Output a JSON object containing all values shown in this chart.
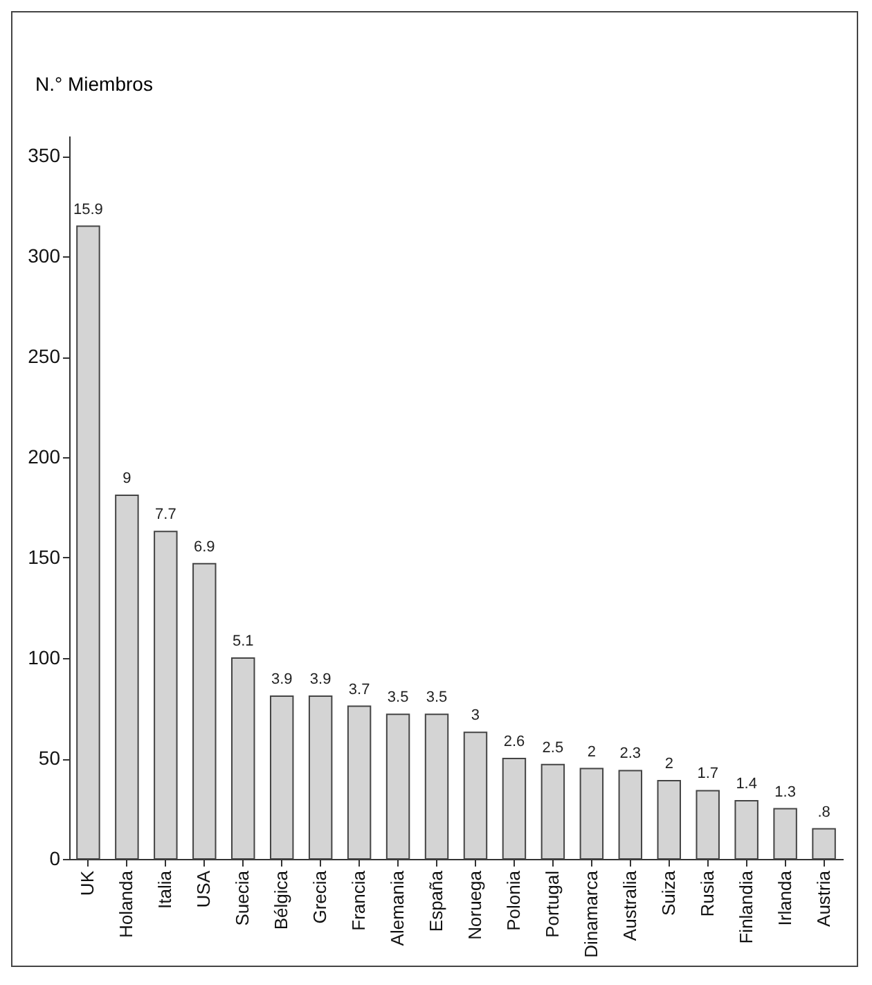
{
  "chart_data": {
    "type": "bar",
    "ylabel": "N.° Miembros",
    "categories": [
      "UK",
      "Holanda",
      "Italia",
      "USA",
      "Suecia",
      "Bélgica",
      "Grecia",
      "Francia",
      "Alemania",
      "España",
      "Noruega",
      "Polonia",
      "Portugal",
      "Dinamarca",
      "Australia",
      "Suiza",
      "Rusia",
      "Finlandia",
      "Irlanda",
      "Austria"
    ],
    "values": [
      315,
      181,
      163,
      147,
      100,
      81,
      81,
      76,
      72,
      72,
      63,
      50,
      47,
      45,
      44,
      39,
      34,
      29,
      25,
      15
    ],
    "annotations": [
      {
        "text": "15.9",
        "x": "UK",
        "y": 315
      },
      {
        "text": "9",
        "x": "Holanda",
        "y": 181
      },
      {
        "text": "7.7",
        "x": "Italia",
        "y": 163
      },
      {
        "text": "6.9",
        "x": "USA",
        "y": 147
      },
      {
        "text": "5.1",
        "x": "Suecia",
        "y": 100
      },
      {
        "text": "3.9",
        "x": "Bélgica",
        "y": 81
      },
      {
        "text": "3.9",
        "x": "Grecia",
        "y": 81
      },
      {
        "text": "3.7",
        "x": "Francia",
        "y": 76
      },
      {
        "text": "3.5",
        "x": "Alemania",
        "y": 72
      },
      {
        "text": "3.5",
        "x": "España",
        "y": 72
      },
      {
        "text": "3",
        "x": "Noruega",
        "y": 63
      },
      {
        "text": "2.6",
        "x": "Polonia",
        "y": 50
      },
      {
        "text": "2.5",
        "x": "Portugal",
        "y": 47
      },
      {
        "text": "2",
        "x": "Dinamarca",
        "y": 45
      },
      {
        "text": "2.3",
        "x": "Australia",
        "y": 44
      },
      {
        "text": "2",
        "x": "Suiza",
        "y": 39
      },
      {
        "text": "1.7",
        "x": "Rusia",
        "y": 34
      },
      {
        "text": "1.4",
        "x": "Finlandia",
        "y": 29
      },
      {
        "text": "1.3",
        "x": "Irlanda",
        "y": 25
      },
      {
        "text": ".8",
        "x": "Austria",
        "y": 15
      }
    ],
    "color": "#d4d4d4",
    "ylim": [
      0,
      360
    ],
    "yticks": [
      0,
      50,
      100,
      150,
      200,
      250,
      300,
      350
    ],
    "grid": false
  }
}
